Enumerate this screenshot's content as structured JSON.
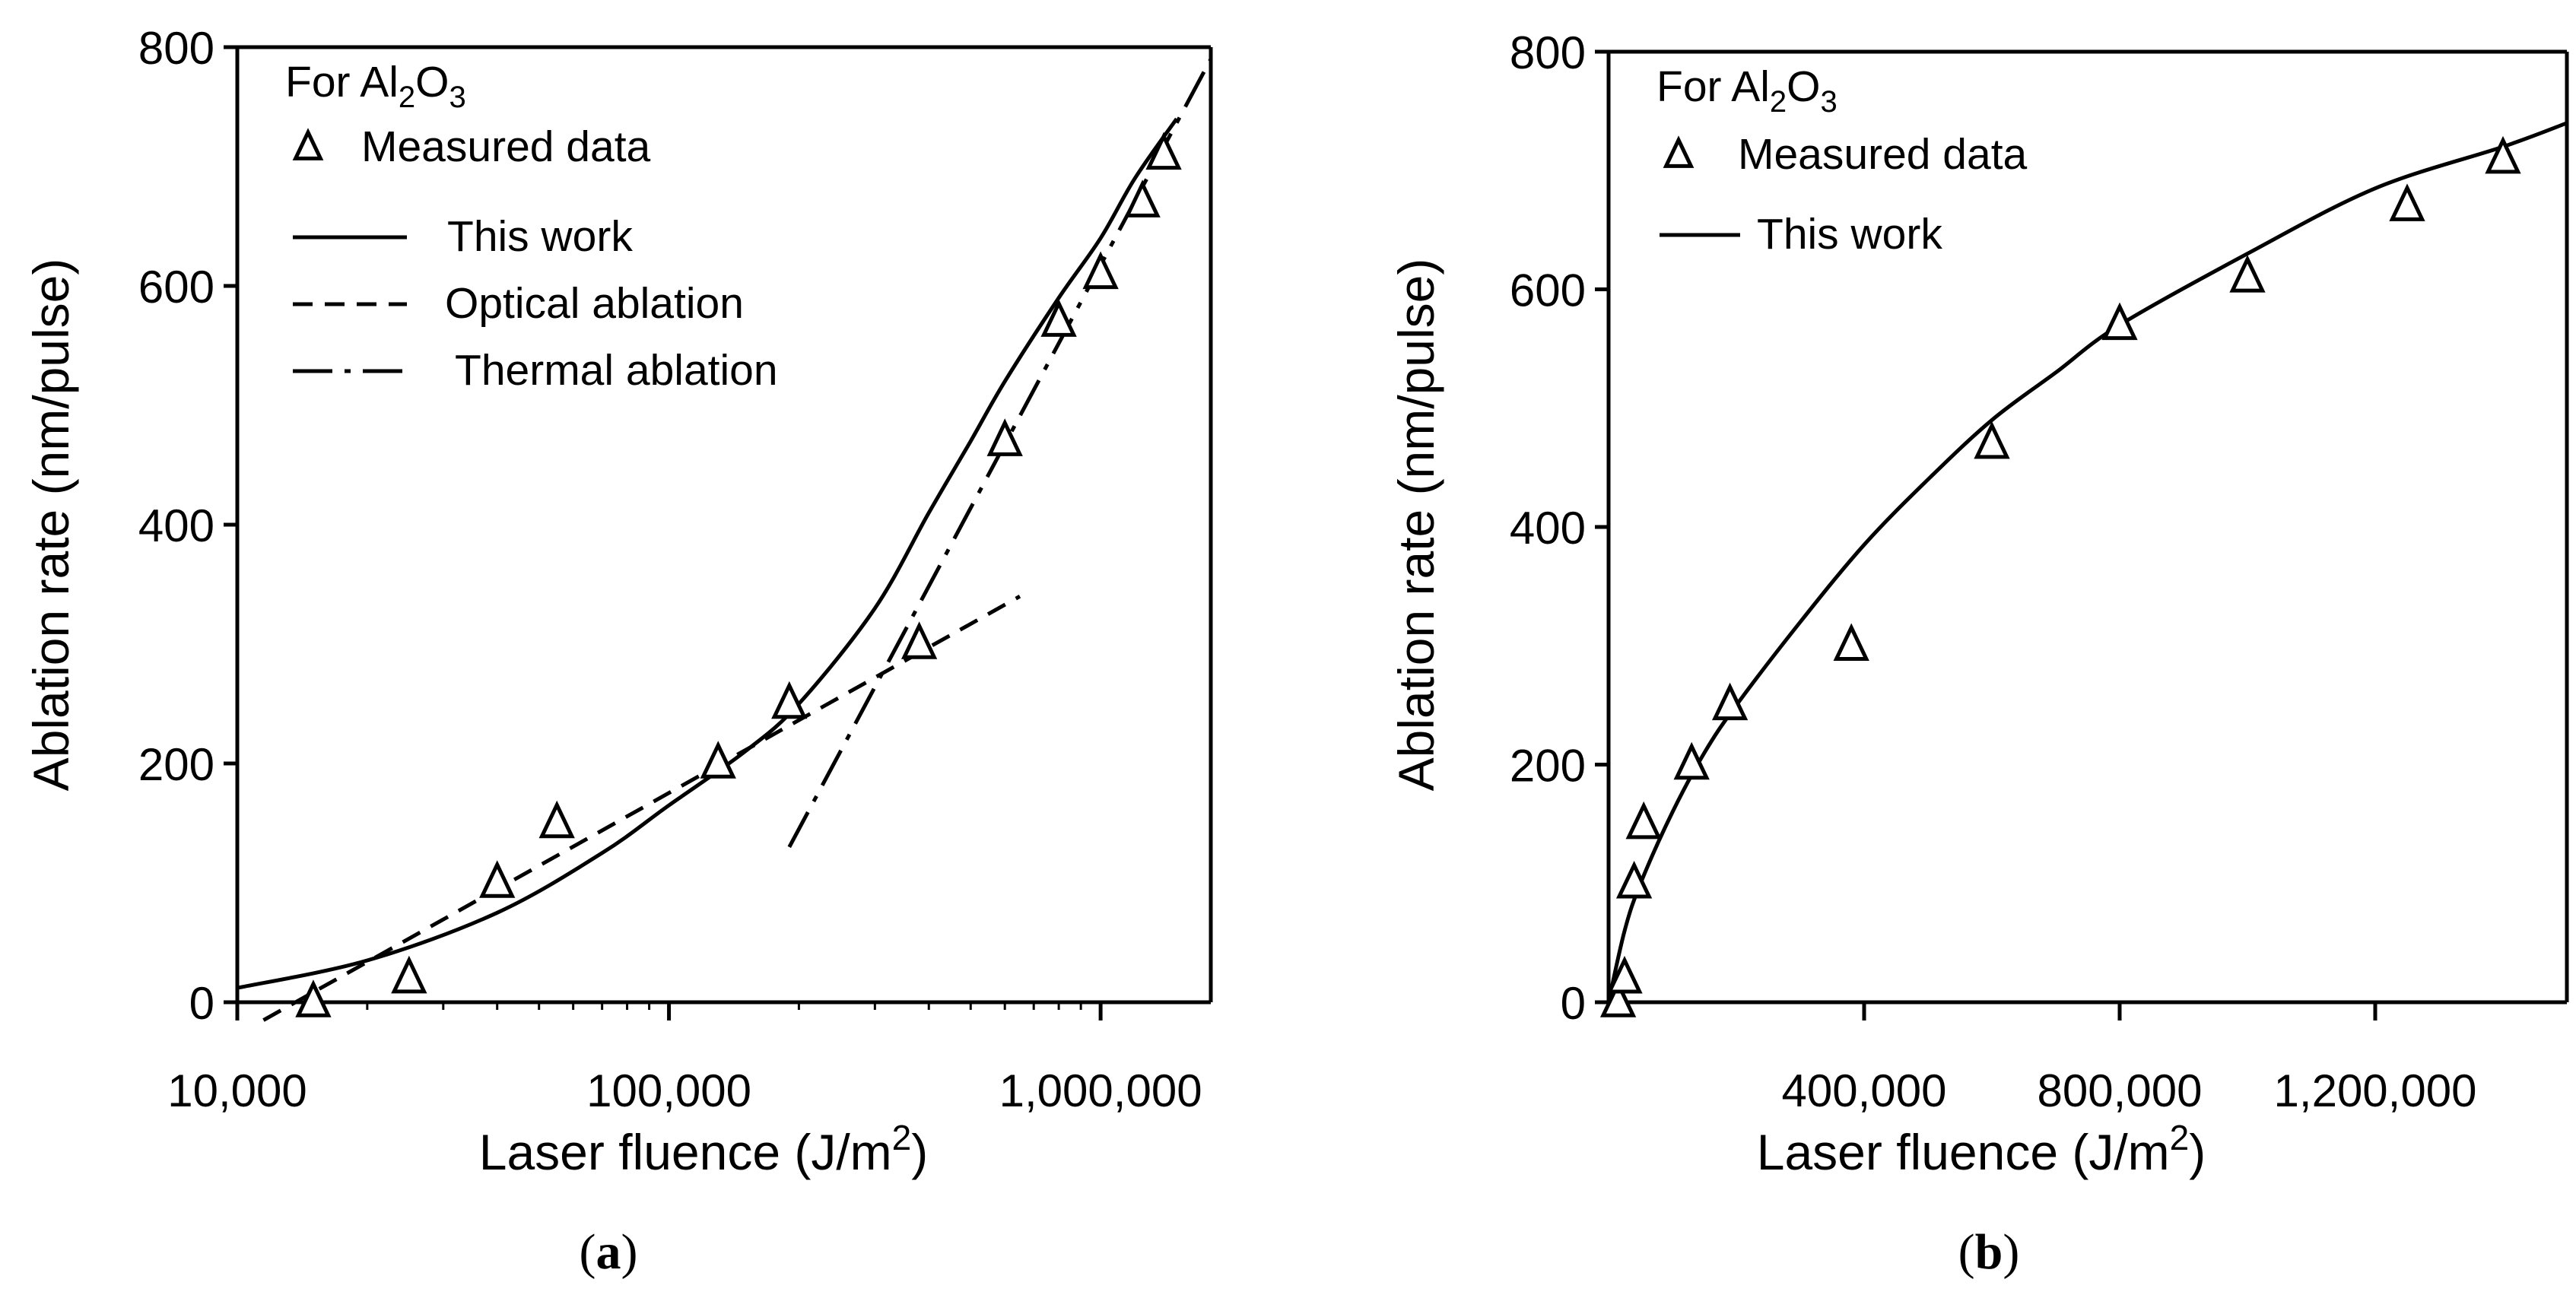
{
  "chart_data": [
    {
      "type": "scatter",
      "panel": "a",
      "caption_letter": "a",
      "caption_open": "(",
      "caption_close": ")",
      "xscale": "log",
      "xlabel_main": "Laser fluence (J/m",
      "xlabel_sup": "2",
      "xlabel_close": ")",
      "ylabel": "Ablation rate (nm/pulse)",
      "xlim": [
        10000,
        1800000
      ],
      "ylim": [
        0,
        800
      ],
      "xtick_values": [
        10000,
        100000,
        1000000
      ],
      "xtick_labels": [
        "10,000",
        "100,000",
        "1,000,000"
      ],
      "ytick_values": [
        0,
        200,
        400,
        600,
        800
      ],
      "ytick_labels": [
        "0",
        "200",
        "400",
        "600",
        "800"
      ],
      "legend_title_parts": [
        "For Al",
        "2",
        "O",
        "3"
      ],
      "legend_labels": [
        "Measured data",
        "This work",
        "Optical ablation",
        "Thermal ablation"
      ],
      "measured": {
        "x": [
          15000,
          25000,
          40000,
          55000,
          130000,
          190000,
          380000,
          600000,
          800000,
          1000000,
          1250000,
          1400000
        ],
        "y": [
          0,
          20,
          100,
          150,
          200,
          250,
          300,
          470,
          570,
          610,
          670,
          710
        ]
      },
      "this_work": {
        "x": [
          10000,
          20000,
          40000,
          70000,
          100000,
          150000,
          200000,
          300000,
          400000,
          500000,
          600000,
          800000,
          1000000,
          1200000,
          1500000
        ],
        "y": [
          12,
          35,
          75,
          125,
          165,
          210,
          250,
          330,
          410,
          470,
          520,
          590,
          640,
          690,
          740
        ]
      },
      "optical_ablation": {
        "x": [
          11500,
          650000
        ],
        "y": [
          -15,
          340
        ]
      },
      "thermal_ablation": {
        "x": [
          190000,
          1800000
        ],
        "y": [
          130,
          790
        ]
      }
    },
    {
      "type": "scatter",
      "panel": "b",
      "caption_letter": "b",
      "caption_open": "(",
      "caption_close": ")",
      "xscale": "linear",
      "xlabel_main": "Laser fluence (J/m",
      "xlabel_sup": "2",
      "xlabel_close": ")",
      "ylabel": "Ablation rate (nm/pulse)",
      "xlim": [
        0,
        1500000
      ],
      "ylim": [
        0,
        800
      ],
      "xtick_values": [
        400000,
        800000,
        1200000
      ],
      "xtick_labels": [
        "400,000",
        "800,000",
        "1,200,000"
      ],
      "ytick_values": [
        0,
        200,
        400,
        600,
        800
      ],
      "ytick_labels": [
        "0",
        "200",
        "400",
        "600",
        "800"
      ],
      "legend_title_parts": [
        "For Al",
        "2",
        "O",
        "3"
      ],
      "legend_labels": [
        "Measured data",
        "This work"
      ],
      "measured": {
        "x": [
          15000,
          25000,
          40000,
          55000,
          130000,
          190000,
          380000,
          600000,
          800000,
          1000000,
          1250000,
          1400000
        ],
        "y": [
          0,
          20,
          100,
          150,
          200,
          250,
          300,
          470,
          570,
          610,
          670,
          710
        ]
      },
      "this_work": {
        "x": [
          0,
          25000,
          50000,
          100000,
          150000,
          200000,
          300000,
          400000,
          500000,
          600000,
          700000,
          800000,
          1000000,
          1200000,
          1400000,
          1500000
        ],
        "y": [
          0,
          60,
          100,
          160,
          210,
          250,
          320,
          385,
          440,
          490,
          530,
          570,
          630,
          685,
          720,
          740
        ]
      }
    }
  ]
}
